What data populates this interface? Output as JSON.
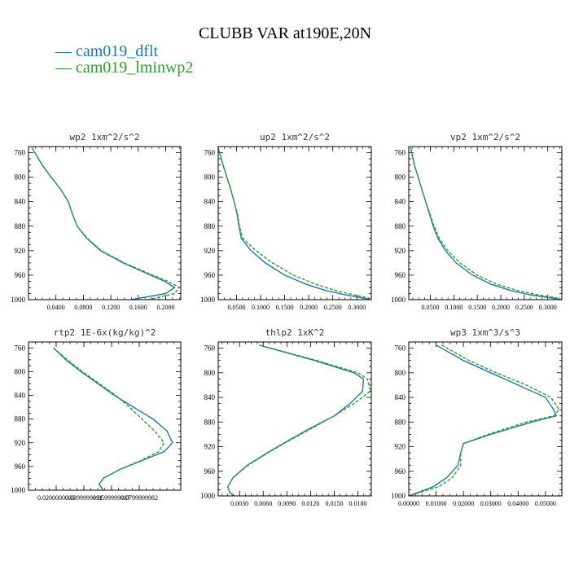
{
  "title": "CLUBB VAR at190E,20N",
  "legend": [
    {
      "label": "— cam019_dflt",
      "color": "#1f77b4"
    },
    {
      "label": "— cam019_lminwp2",
      "color": "#2ca02c"
    }
  ],
  "chart_data": [
    {
      "type": "line",
      "title": "wp2   1xm^2/s^2",
      "ylim": [
        1000,
        750
      ],
      "xlim": [
        0.0,
        0.222
      ],
      "yticks": [
        "760",
        "800",
        "840",
        "880",
        "920",
        "960",
        "1000"
      ],
      "xticks": [
        "0.0400",
        "0.0800",
        "0.1200",
        "0.1600",
        "0.2000"
      ],
      "series": [
        {
          "name": "cam019_dflt",
          "color": "#1f77b4",
          "dash": "",
          "y": [
            752,
            765,
            780,
            800,
            820,
            840,
            860,
            880,
            900,
            920,
            940,
            960,
            970,
            980,
            990,
            1000
          ],
          "x": [
            0.005,
            0.012,
            0.02,
            0.033,
            0.047,
            0.058,
            0.064,
            0.071,
            0.085,
            0.105,
            0.138,
            0.178,
            0.198,
            0.213,
            0.2,
            0.15
          ]
        },
        {
          "name": "cam019_lminwp2",
          "color": "#2ca02c",
          "dash": "4,2",
          "y": [
            752,
            765,
            780,
            800,
            820,
            840,
            860,
            880,
            900,
            920,
            940,
            960,
            970,
            980,
            990,
            1000
          ],
          "x": [
            0.005,
            0.012,
            0.02,
            0.033,
            0.047,
            0.058,
            0.064,
            0.071,
            0.086,
            0.106,
            0.14,
            0.181,
            0.203,
            0.22,
            0.213,
            0.175
          ]
        }
      ]
    },
    {
      "type": "line",
      "title": "up2   1xm^2/s^2",
      "ylim": [
        1000,
        750
      ],
      "xlim": [
        0.012,
        0.33
      ],
      "yticks": [
        "760",
        "800",
        "840",
        "880",
        "920",
        "960",
        "1000"
      ],
      "xticks": [
        "0.0500",
        "0.1000",
        "0.1500",
        "0.2000",
        "0.2500",
        "0.3000"
      ],
      "series": [
        {
          "name": "cam019_dflt",
          "color": "#1f77b4",
          "dash": "",
          "y": [
            752,
            780,
            800,
            820,
            840,
            860,
            880,
            900,
            920,
            940,
            960,
            975,
            985,
            992,
            997,
            1000
          ],
          "x": [
            0.012,
            0.022,
            0.03,
            0.038,
            0.045,
            0.051,
            0.055,
            0.06,
            0.08,
            0.11,
            0.15,
            0.195,
            0.235,
            0.275,
            0.31,
            0.328
          ]
        },
        {
          "name": "cam019_lminwp2",
          "color": "#2ca02c",
          "dash": "4,2",
          "y": [
            752,
            780,
            800,
            820,
            840,
            860,
            880,
            900,
            920,
            940,
            960,
            975,
            985,
            992,
            997,
            1000
          ],
          "x": [
            0.012,
            0.022,
            0.03,
            0.038,
            0.045,
            0.052,
            0.056,
            0.063,
            0.09,
            0.125,
            0.168,
            0.215,
            0.255,
            0.293,
            0.322,
            0.33
          ]
        }
      ]
    },
    {
      "type": "line",
      "title": "vp2   1xm^2/s^2",
      "ylim": [
        1000,
        750
      ],
      "xlim": [
        0.004,
        0.33
      ],
      "yticks": [
        "760",
        "800",
        "840",
        "880",
        "920",
        "960",
        "1000"
      ],
      "xticks": [
        "0.0500",
        "0.1000",
        "0.1500",
        "0.2000",
        "0.2500",
        "0.3000"
      ],
      "series": [
        {
          "name": "cam019_dflt",
          "color": "#1f77b4",
          "dash": "",
          "y": [
            752,
            780,
            800,
            820,
            840,
            860,
            880,
            900,
            920,
            940,
            960,
            975,
            985,
            992,
            997,
            1000
          ],
          "x": [
            0.008,
            0.016,
            0.024,
            0.032,
            0.04,
            0.048,
            0.056,
            0.066,
            0.082,
            0.105,
            0.14,
            0.18,
            0.22,
            0.262,
            0.305,
            0.328
          ]
        },
        {
          "name": "cam019_lminwp2",
          "color": "#2ca02c",
          "dash": "4,2",
          "y": [
            752,
            780,
            800,
            820,
            840,
            860,
            880,
            900,
            920,
            940,
            960,
            975,
            985,
            992,
            997,
            1000
          ],
          "x": [
            0.008,
            0.016,
            0.024,
            0.032,
            0.04,
            0.049,
            0.058,
            0.069,
            0.087,
            0.113,
            0.15,
            0.192,
            0.235,
            0.278,
            0.318,
            0.33
          ]
        }
      ]
    },
    {
      "type": "line",
      "title": "rtp2   1E-6x(kg/kg)^2",
      "ylim": [
        1000,
        750
      ],
      "xlim": [
        0.0,
        0.11
      ],
      "yticks": [
        "760",
        "800",
        "840",
        "880",
        "920",
        "960",
        "1000"
      ],
      "xticks": [
        "0.0200000003",
        "0.0399999991",
        "0.0599999987",
        "0.0799999982"
      ],
      "series": [
        {
          "name": "cam019_dflt",
          "color": "#1f77b4",
          "dash": "",
          "y": [
            760,
            780,
            800,
            820,
            840,
            860,
            880,
            900,
            920,
            935,
            950,
            965,
            980,
            990,
            1000
          ],
          "x": [
            0.018,
            0.027,
            0.038,
            0.05,
            0.062,
            0.076,
            0.09,
            0.1,
            0.104,
            0.098,
            0.082,
            0.066,
            0.054,
            0.051,
            0.054
          ]
        },
        {
          "name": "cam019_lminwp2",
          "color": "#2ca02c",
          "dash": "4,2",
          "y": [
            760,
            780,
            800,
            820,
            840,
            860,
            880,
            900,
            920,
            935,
            950,
            965,
            980,
            990,
            1000
          ],
          "x": [
            0.018,
            0.028,
            0.039,
            0.051,
            0.063,
            0.073,
            0.082,
            0.091,
            0.098,
            0.094,
            0.081,
            0.066,
            0.054,
            0.051,
            0.054
          ]
        }
      ]
    },
    {
      "type": "line",
      "title": "thlp2   1xK^2",
      "ylim": [
        1000,
        750
      ],
      "xlim": [
        0.0003,
        0.0197
      ],
      "yticks": [
        "760",
        "800",
        "840",
        "880",
        "920",
        "960",
        "1000"
      ],
      "xticks": [
        "0.0030",
        "0.0060",
        "0.0090",
        "0.0120",
        "0.0150",
        "0.0180"
      ],
      "series": [
        {
          "name": "cam019_dflt",
          "color": "#1f77b4",
          "dash": "",
          "y": [
            755,
            780,
            800,
            810,
            830,
            850,
            870,
            890,
            910,
            930,
            950,
            970,
            985,
            995,
            1000
          ],
          "x": [
            0.0055,
            0.0125,
            0.0175,
            0.0187,
            0.0186,
            0.017,
            0.015,
            0.012,
            0.0092,
            0.0065,
            0.004,
            0.0022,
            0.0015,
            0.0018,
            0.0023
          ]
        },
        {
          "name": "cam019_lminwp2",
          "color": "#2ca02c",
          "dash": "4,2",
          "y": [
            755,
            780,
            800,
            810,
            830,
            850,
            870,
            890,
            910,
            930,
            950,
            970,
            985,
            995,
            1000
          ],
          "x": [
            0.0055,
            0.0128,
            0.018,
            0.0192,
            0.0196,
            0.0175,
            0.015,
            0.0122,
            0.0093,
            0.0066,
            0.0041,
            0.0022,
            0.0015,
            0.0018,
            0.0023
          ]
        }
      ]
    },
    {
      "type": "line",
      "title": "wp3   1xm^3/s^3",
      "ylim": [
        1000,
        750
      ],
      "xlim": [
        0.0,
        0.056
      ],
      "yticks": [
        "760",
        "800",
        "840",
        "880",
        "920",
        "960",
        "1000"
      ],
      "xticks": [
        "0.00000",
        "0.01000",
        "0.02000",
        "0.03000",
        "0.04000",
        "0.05000"
      ],
      "series": [
        {
          "name": "cam019_dflt",
          "color": "#1f77b4",
          "dash": "",
          "y": [
            755,
            780,
            800,
            820,
            840,
            860,
            870,
            880,
            900,
            915,
            930,
            950,
            970,
            985,
            1000
          ],
          "x": [
            0.01,
            0.02,
            0.03,
            0.04,
            0.05,
            0.053,
            0.054,
            0.045,
            0.03,
            0.02,
            0.019,
            0.018,
            0.014,
            0.009,
            0.0
          ]
        },
        {
          "name": "cam019_lminwp2",
          "color": "#2ca02c",
          "dash": "4,2",
          "y": [
            755,
            780,
            800,
            820,
            840,
            860,
            870,
            880,
            900,
            915,
            930,
            950,
            970,
            985,
            1000
          ],
          "x": [
            0.012,
            0.022,
            0.032,
            0.043,
            0.052,
            0.055,
            0.053,
            0.043,
            0.029,
            0.02,
            0.019,
            0.019,
            0.016,
            0.011,
            0.0
          ]
        }
      ]
    }
  ]
}
